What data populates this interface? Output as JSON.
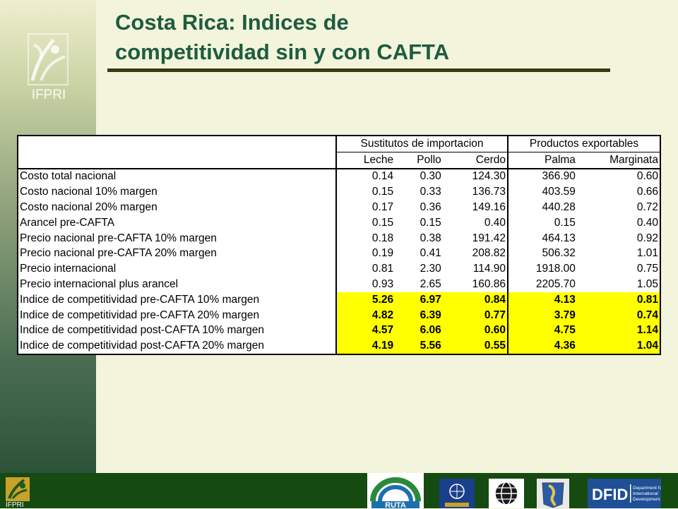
{
  "sidebar": {
    "logo_text": "IFPRI"
  },
  "title": {
    "line1": "Costa Rica: Indices de",
    "line2": "competitividad sin y con CAFTA"
  },
  "table": {
    "group_import": "Sustitutos de importacion",
    "group_export": "Productos exportables",
    "columns": [
      "Leche",
      "Pollo",
      "Cerdo",
      "Palma",
      "Marginata"
    ],
    "rows": [
      {
        "label": "Costo total nacional",
        "values": [
          "0.14",
          "0.30",
          "124.30",
          "366.90",
          "0.60"
        ]
      },
      {
        "label": "Costo nacional 10% margen",
        "values": [
          "0.15",
          "0.33",
          "136.73",
          "403.59",
          "0.66"
        ]
      },
      {
        "label": "Costo nacional 20% margen",
        "values": [
          "0.17",
          "0.36",
          "149.16",
          "440.28",
          "0.72"
        ]
      },
      {
        "label": "Arancel pre-CAFTA",
        "values": [
          "0.15",
          "0.15",
          "0.40",
          "0.15",
          "0.40"
        ]
      },
      {
        "label": "Precio nacional pre-CAFTA 10% margen",
        "values": [
          "0.18",
          "0.38",
          "191.42",
          "464.13",
          "0.92"
        ]
      },
      {
        "label": "Precio nacional pre-CAFTA 20% margen",
        "values": [
          "0.19",
          "0.41",
          "208.82",
          "506.32",
          "1.01"
        ]
      },
      {
        "label": "Precio internacional",
        "values": [
          "0.81",
          "2.30",
          "114.90",
          "1918.00",
          "0.75"
        ]
      },
      {
        "label": "Precio internacional plus arancel",
        "values": [
          "0.93",
          "2.65",
          "160.86",
          "2205.70",
          "1.05"
        ]
      },
      {
        "label": "Indice de competitividad pre-CAFTA 10% margen",
        "values": [
          "5.26",
          "6.97",
          "0.84",
          "4.13",
          "0.81"
        ]
      },
      {
        "label": "Indice de competitividad pre-CAFTA 20% margen",
        "values": [
          "4.82",
          "6.39",
          "0.77",
          "3.79",
          "0.74"
        ]
      },
      {
        "label": "Indice de competitividad post-CAFTA 10% margen",
        "values": [
          "4.57",
          "6.06",
          "0.60",
          "4.75",
          "1.14"
        ]
      },
      {
        "label": "Indice de competitividad post-CAFTA 20% margen",
        "values": [
          "4.19",
          "5.56",
          "0.55",
          "4.36",
          "1.04"
        ]
      }
    ],
    "highlight_color": "#ffff00"
  },
  "footer": {
    "ifpri_text": "IFPRI",
    "logos": [
      "ruta-logo",
      "un-logo",
      "world-bank-logo",
      "americas-logo",
      "dfid-logo"
    ],
    "ruta_text": "RUTA",
    "dfid_text": "DFID",
    "dfid_subtitle": "Department for International Development"
  }
}
